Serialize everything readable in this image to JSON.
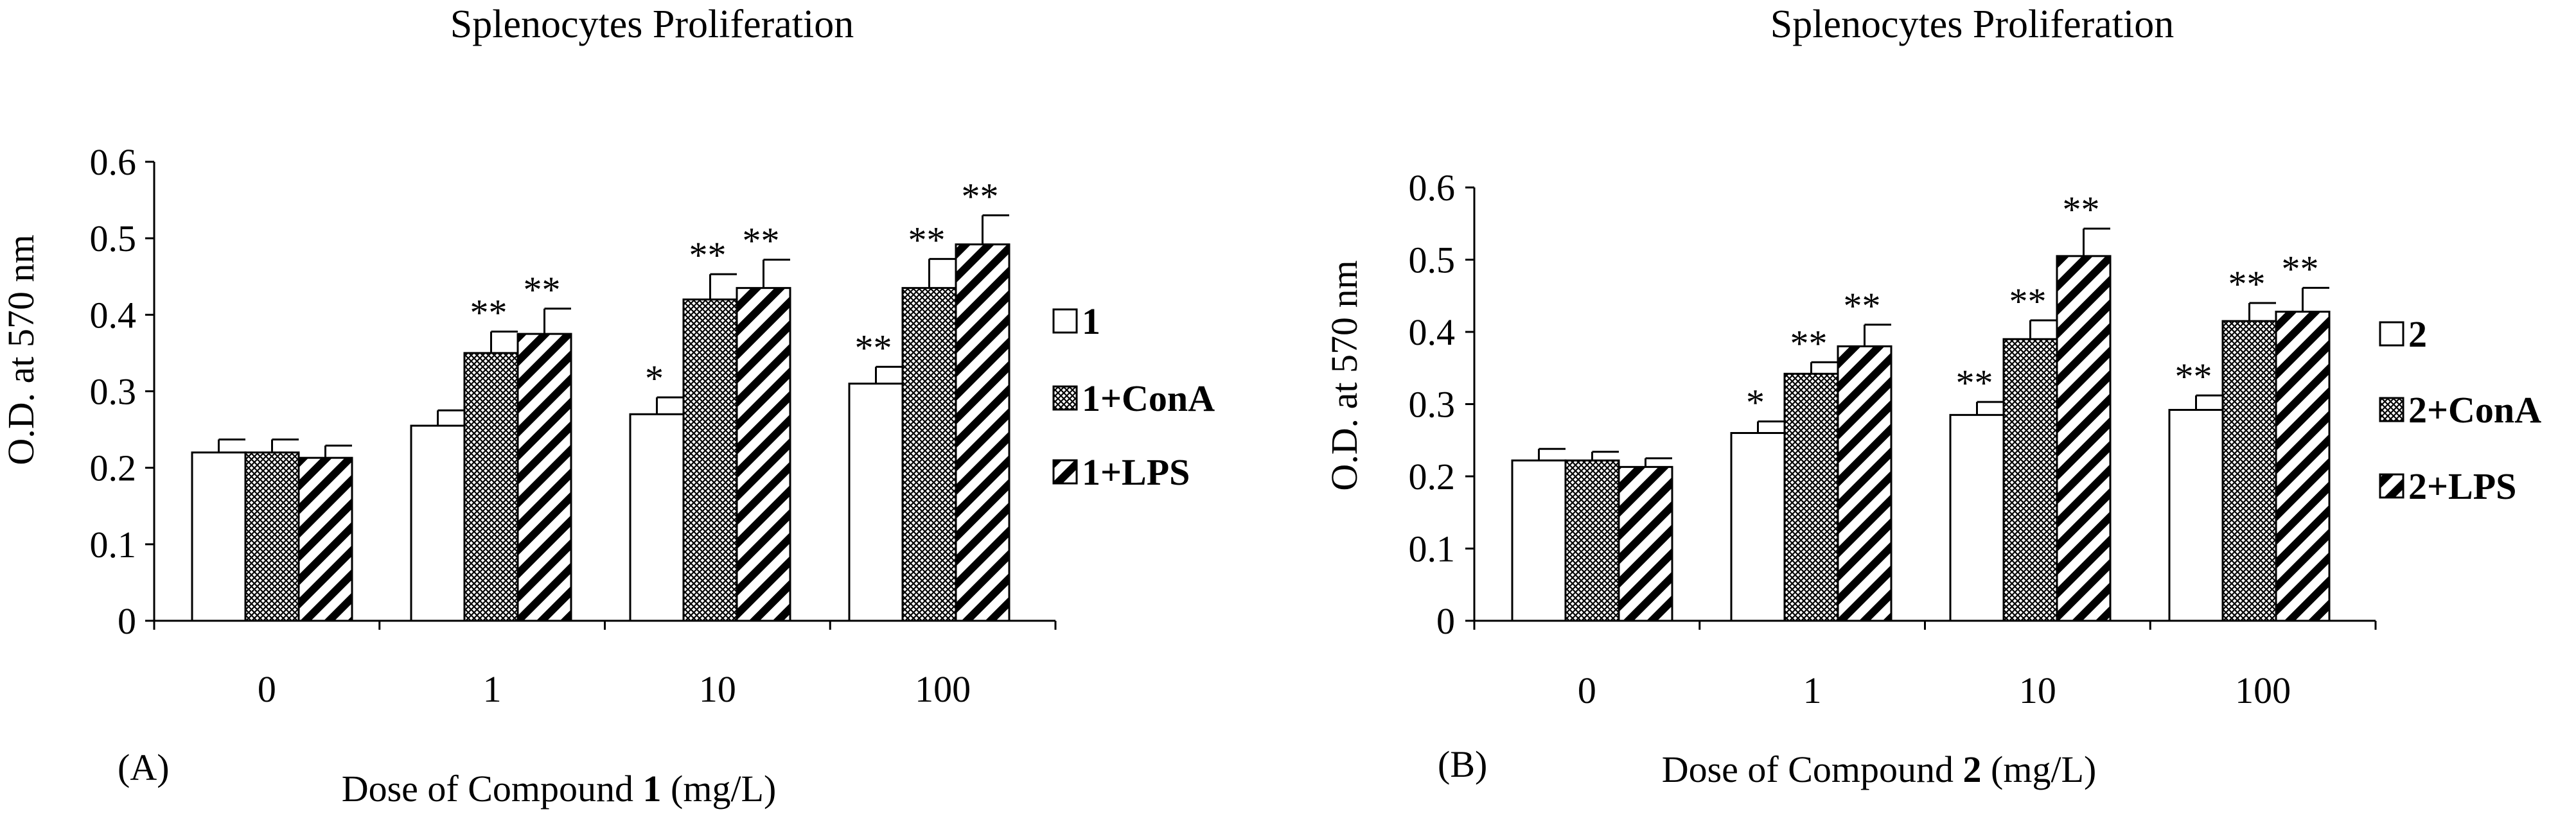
{
  "chart_data": [
    {
      "type": "bar",
      "panel_label": "(A)",
      "title": "Splenocytes Proliferation",
      "ylabel": "O.D. at 570 nm",
      "xlabel_prefix": "Dose of Compound ",
      "xlabel_compound": "1",
      "xlabel_suffix": " (mg/L)",
      "ylim": [
        0,
        0.6
      ],
      "yticks": [
        "0",
        "0.1",
        "0.2",
        "0.3",
        "0.4",
        "0.5",
        "0.6"
      ],
      "categories": [
        "0",
        "1",
        "10",
        "100"
      ],
      "series": [
        {
          "name": "1",
          "pattern": "white",
          "values": [
            0.22,
            0.255,
            0.27,
            0.31
          ],
          "errors": [
            0.017,
            0.02,
            0.022,
            0.022
          ],
          "marks": [
            "",
            "",
            "*",
            "**"
          ]
        },
        {
          "name": "1+ConA",
          "pattern": "crosshatch",
          "values": [
            0.22,
            0.35,
            0.42,
            0.435
          ],
          "errors": [
            0.017,
            0.028,
            0.033,
            0.038
          ],
          "marks": [
            "",
            "**",
            "**",
            "**"
          ]
        },
        {
          "name": "1+LPS",
          "pattern": "diagonal",
          "values": [
            0.213,
            0.375,
            0.435,
            0.492
          ],
          "errors": [
            0.016,
            0.033,
            0.037,
            0.038
          ],
          "marks": [
            "",
            "**",
            "**",
            "**"
          ]
        }
      ]
    },
    {
      "type": "bar",
      "panel_label": "(B)",
      "title": "Splenocytes Proliferation",
      "ylabel": "O.D. at 570 nm",
      "xlabel_prefix": "Dose of Compound ",
      "xlabel_compound": "2",
      "xlabel_suffix": "  (mg/L)",
      "ylim": [
        0,
        0.6
      ],
      "yticks": [
        "0",
        "0.1",
        "0.2",
        "0.3",
        "0.4",
        "0.5",
        "0.6"
      ],
      "categories": [
        "0",
        "1",
        "10",
        "100"
      ],
      "series": [
        {
          "name": "2",
          "pattern": "white",
          "values": [
            0.222,
            0.26,
            0.285,
            0.292
          ],
          "errors": [
            0.016,
            0.016,
            0.018,
            0.02
          ],
          "marks": [
            "",
            "*",
            "**",
            "**"
          ]
        },
        {
          "name": "2+ConA",
          "pattern": "crosshatch",
          "values": [
            0.222,
            0.342,
            0.39,
            0.415
          ],
          "errors": [
            0.012,
            0.016,
            0.026,
            0.025
          ],
          "marks": [
            "",
            "**",
            "**",
            "**"
          ]
        },
        {
          "name": "2+LPS",
          "pattern": "diagonal",
          "values": [
            0.213,
            0.38,
            0.505,
            0.428
          ],
          "errors": [
            0.012,
            0.03,
            0.038,
            0.033
          ],
          "marks": [
            "",
            "**",
            "**",
            "**"
          ]
        }
      ]
    }
  ]
}
